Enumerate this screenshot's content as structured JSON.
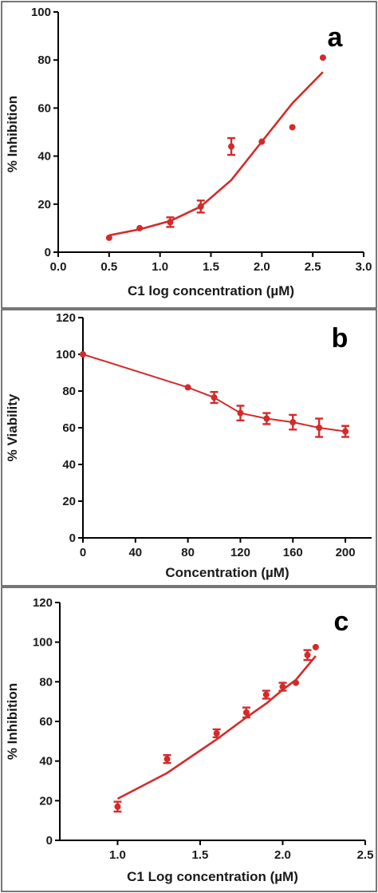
{
  "colors": {
    "series": "#d42a2a",
    "axis": "#000000",
    "border": "#555555"
  },
  "chart_data": [
    {
      "type": "scatter",
      "panel_label": "a",
      "xlabel": "C1 log concentration (µM)",
      "ylabel": "% Inhibition",
      "xlim": [
        0.0,
        3.0
      ],
      "ylim": [
        0,
        100
      ],
      "xticks": [
        0.0,
        0.5,
        1.0,
        1.5,
        2.0,
        2.5,
        3.0
      ],
      "xtick_labels": [
        "0.0",
        "0.5",
        "1.0",
        "1.5",
        "2.0",
        "2.5",
        "3.0"
      ],
      "yticks": [
        0,
        20,
        40,
        60,
        80,
        100
      ],
      "ytick_labels": [
        "0",
        "20",
        "40",
        "60",
        "80",
        "100"
      ],
      "fit": "sigmoid",
      "fit_range": [
        0.5,
        2.6
      ],
      "fit_curve": {
        "x": [
          0.5,
          0.8,
          1.1,
          1.4,
          1.7,
          2.0,
          2.3,
          2.6
        ],
        "y": [
          7,
          9.5,
          13,
          19,
          30,
          46,
          62,
          75
        ]
      },
      "points": {
        "x": [
          0.5,
          0.8,
          1.1,
          1.4,
          1.7,
          2.0,
          2.3,
          2.6
        ],
        "y": [
          6,
          10,
          12.5,
          19,
          44,
          46,
          52,
          81
        ],
        "err": [
          0,
          0,
          2,
          2.5,
          3.5,
          0,
          0,
          0
        ]
      },
      "grid": false
    },
    {
      "type": "line",
      "panel_label": "b",
      "xlabel": "Concentration (µM)",
      "ylabel": "% Viability",
      "xlim": [
        0,
        220
      ],
      "ylim": [
        0,
        120
      ],
      "xticks": [
        0,
        40,
        80,
        120,
        160,
        200
      ],
      "xtick_labels": [
        "0",
        "40",
        "80",
        "120",
        "160",
        "200"
      ],
      "yticks": [
        0,
        20,
        40,
        60,
        80,
        100,
        120
      ],
      "ytick_labels": [
        "0",
        "20",
        "40",
        "60",
        "80",
        "100",
        "120"
      ],
      "points": {
        "x": [
          0,
          80,
          100,
          120,
          140,
          160,
          180,
          200
        ],
        "y": [
          100,
          82,
          76.5,
          68,
          65,
          63,
          60,
          58
        ],
        "err": [
          0,
          0,
          3,
          4,
          3,
          4,
          5,
          3
        ]
      },
      "grid": false
    },
    {
      "type": "scatter",
      "panel_label": "c",
      "xlabel": "C1 Log concentration (µM)",
      "ylabel": "% Inhibition",
      "xlim": [
        0.65,
        2.5
      ],
      "ylim": [
        0,
        120
      ],
      "xticks": [
        1.0,
        1.5,
        2.0,
        2.5
      ],
      "xtick_labels": [
        "1.0",
        "1.5",
        "2.0",
        "2.5"
      ],
      "yticks": [
        0,
        20,
        40,
        60,
        80,
        100,
        120
      ],
      "ytick_labels": [
        "0",
        "20",
        "40",
        "60",
        "80",
        "100",
        "120"
      ],
      "fit": "sigmoid",
      "fit_range": [
        1.0,
        2.2
      ],
      "fit_curve": {
        "x": [
          1.0,
          1.3,
          1.6,
          1.78,
          1.9,
          2.0,
          2.08,
          2.15,
          2.2
        ],
        "y": [
          21,
          34,
          51,
          62,
          69,
          76,
          81,
          88,
          93
        ]
      },
      "points": {
        "x": [
          1.0,
          1.3,
          1.6,
          1.78,
          1.9,
          2.0,
          2.08,
          2.15,
          2.2
        ],
        "y": [
          17,
          41,
          54,
          64.5,
          73.5,
          77.5,
          79.5,
          93.5,
          97.5
        ],
        "err": [
          2.5,
          2,
          2,
          2.5,
          2,
          2,
          0,
          2.5,
          0
        ]
      },
      "grid": false
    }
  ]
}
